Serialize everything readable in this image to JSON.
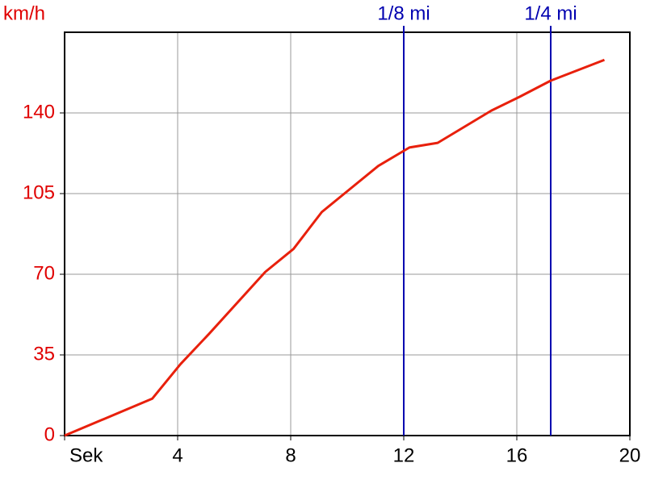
{
  "chart_data": {
    "type": "line",
    "y_label": "km/h",
    "x": [
      0,
      3.1,
      4.1,
      5.1,
      7.1,
      8.1,
      9.1,
      10,
      11.1,
      12.2,
      13.2,
      15.1,
      16.1,
      17.2,
      19.1
    ],
    "series": [
      {
        "color": "#e8200c",
        "values": [
          0,
          16,
          31,
          44,
          71,
          81,
          97,
          106,
          117,
          125,
          127,
          141,
          147,
          154,
          163
        ]
      }
    ],
    "xlim": [
      0,
      20
    ],
    "xticks": [
      {
        "value": 0,
        "label": "Sek"
      },
      4,
      8,
      12,
      16,
      20
    ],
    "ylim": [
      0,
      175
    ],
    "yticks": [
      0,
      35,
      70,
      105,
      140
    ],
    "grid": true,
    "markers": [
      {
        "label": "1/8 mi",
        "x": 12,
        "color": "#0000b0"
      },
      {
        "label": "1/4 mi",
        "x": 17.2,
        "color": "#0000b0"
      }
    ],
    "y_tick_color": "#e00000",
    "x_tick_color": "#000000"
  }
}
